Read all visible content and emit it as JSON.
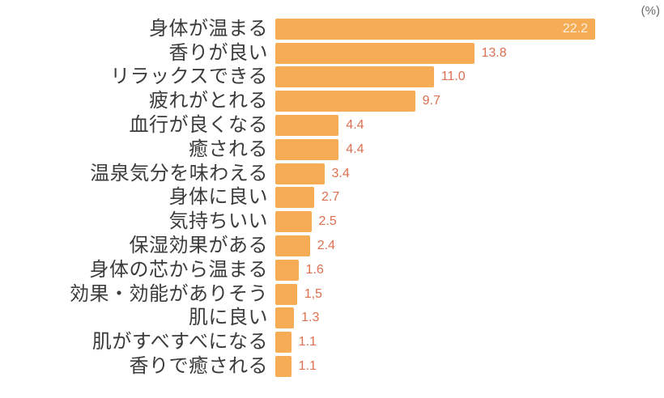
{
  "unit_label": "(%)",
  "colors": {
    "background": "#FFFFFF",
    "bar": "#F6AC55",
    "value_text": "#DC7050",
    "value_text_inside": "#FBF0E0",
    "category_text": "#3B3B3B",
    "unit_text": "#6A6A6A"
  },
  "chart_data": {
    "type": "bar",
    "orientation": "horizontal",
    "unit": "%",
    "title": "",
    "xlabel": "",
    "ylabel": "",
    "xlim": [
      0,
      22.2
    ],
    "grid": false,
    "legend": false,
    "categories": [
      "身体が温まる",
      "香りが良い",
      "リラックスできる",
      "疲れがとれる",
      "血行が良くなる",
      "癒される",
      "温泉気分を味わえる",
      "身体に良い",
      "気持ちいい",
      "保湿効果がある",
      "身体の芯から温まる",
      "効果・効能がありそう",
      "肌に良い",
      "肌がすべすべになる",
      "香りで癒される"
    ],
    "values": [
      22.2,
      13.8,
      11.0,
      9.7,
      4.4,
      4.4,
      3.4,
      2.7,
      2.5,
      2.4,
      1.6,
      1.5,
      1.3,
      1.1,
      1.1
    ],
    "value_labels": [
      "22.2",
      "13.8",
      "11.0",
      "9.7",
      "4.4",
      "4.4",
      "3.4",
      "2.7",
      "2.5",
      "2.4",
      "1.6",
      "1,5",
      "1.3",
      "1.1",
      "1.1"
    ],
    "value_label_placement": [
      "inside",
      "outside",
      "outside",
      "outside",
      "outside",
      "outside",
      "outside",
      "outside",
      "outside",
      "outside",
      "outside",
      "outside",
      "outside",
      "outside",
      "outside"
    ]
  }
}
